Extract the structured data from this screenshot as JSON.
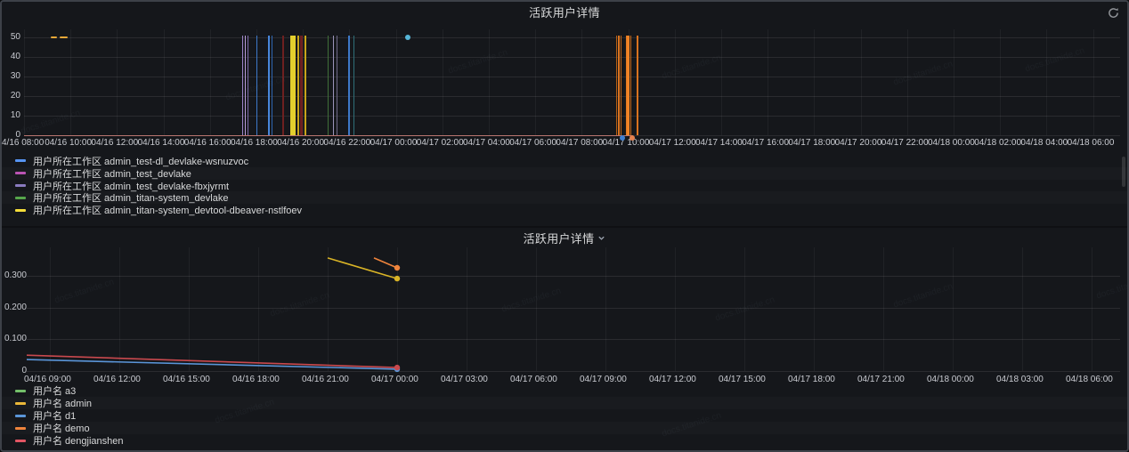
{
  "watermark": {
    "text": "docs.titanide.cn"
  },
  "panel1": {
    "title": "活跃用户详情",
    "refresh_icon": "refresh-icon",
    "legend": [
      {
        "color": "#5794f2",
        "label": "用户所在工作区 admin_test-dl_devlake-wsnuzvoc"
      },
      {
        "color": "#ba54b3",
        "label": "用户所在工作区 admin_test_devlake"
      },
      {
        "color": "#8a7bbf",
        "label": "用户所在工作区 admin_test_devlake-fbxjyrmt"
      },
      {
        "color": "#56a64b",
        "label": "用户所在工作区 admin_titan-system_devlake"
      },
      {
        "color": "#f5dd3a",
        "label": "用户所在工作区 admin_titan-system_devtool-dbeaver-nstlfoev"
      }
    ]
  },
  "panel2": {
    "title": "活跃用户详情",
    "legend": [
      {
        "color": "#73bf69",
        "label": "用户名 a3"
      },
      {
        "color": "#eab839",
        "label": "用户名 admin"
      },
      {
        "color": "#5a95d8",
        "label": "用户名 d1"
      },
      {
        "color": "#ef843c",
        "label": "用户名 demo"
      },
      {
        "color": "#e25563",
        "label": "用户名 dengjianshen"
      }
    ]
  },
  "chart_data": [
    {
      "type": "bar",
      "subtype": "time-series-event-spikes",
      "title": "活跃用户详情",
      "ylim": [
        0,
        54
      ],
      "yticks": [
        0,
        10,
        20,
        30,
        40,
        50
      ],
      "xticks": [
        "4/16 08:00",
        "04/16 10:00",
        "04/16 12:00",
        "04/16 14:00",
        "04/16 16:00",
        "04/16 18:00",
        "04/16 20:00",
        "04/16 22:00",
        "04/17 00:00",
        "04/17 02:00",
        "04/17 04:00",
        "04/17 06:00",
        "04/17 08:00",
        "04/17 10:00",
        "04/17 12:00",
        "04/17 14:00",
        "04/17 16:00",
        "04/17 18:00",
        "04/17 20:00",
        "04/17 22:00",
        "04/18 00:00",
        "04/18 02:00",
        "04/18 04:00",
        "04/18 06:00"
      ],
      "spike_value": 50,
      "spikes": [
        {
          "t": "04/16 17:24",
          "color": "#9b84c8",
          "w": 1
        },
        {
          "t": "04/16 17:31",
          "color": "#b89ad8",
          "w": 1
        },
        {
          "t": "04/16 17:38",
          "color": "#7d6aaa",
          "w": 1
        },
        {
          "t": "04/16 18:02",
          "color": "#3d79c9",
          "w": 1
        },
        {
          "t": "04/16 18:31",
          "color": "#4887dc",
          "w": 2
        },
        {
          "t": "04/16 18:40",
          "color": "#2f66b0",
          "w": 1
        },
        {
          "t": "04/16 19:09",
          "color": "#6e2020",
          "w": 2
        },
        {
          "t": "04/16 19:33",
          "color": "#e3cf2d",
          "w": 6
        },
        {
          "t": "04/16 19:48",
          "color": "#c7a51a",
          "w": 2
        },
        {
          "t": "04/16 19:57",
          "color": "#6e2020",
          "w": 3
        },
        {
          "t": "04/16 20:06",
          "color": "#c7a51a",
          "w": 2
        },
        {
          "t": "04/16 21:06",
          "color": "#416f39",
          "w": 1
        },
        {
          "t": "04/16 21:18",
          "color": "#9a93b8",
          "w": 1
        },
        {
          "t": "04/16 21:27",
          "color": "#6f6a88",
          "w": 1
        },
        {
          "t": "04/16 21:58",
          "color": "#3d79c9",
          "w": 2
        },
        {
          "t": "04/16 22:12",
          "color": "#2f6f78",
          "w": 1
        },
        {
          "t": "04/17 09:30",
          "color": "#b55f16",
          "w": 1
        },
        {
          "t": "04/17 09:36",
          "color": "#d9731f",
          "w": 2
        },
        {
          "t": "04/17 09:42",
          "color": "#c2671a",
          "w": 1
        },
        {
          "t": "04/17 09:54",
          "color": "#e07a22",
          "w": 1
        },
        {
          "t": "04/17 10:00",
          "color": "#ef8326",
          "w": 3
        },
        {
          "t": "04/17 10:06",
          "color": "#c2671a",
          "w": 1
        },
        {
          "t": "04/17 10:24",
          "color": "#d9731f",
          "w": 2
        }
      ],
      "dashes_at_50": [
        {
          "t1": "04/16 09:10",
          "t2": "04/16 09:25",
          "color": "#e8a838"
        },
        {
          "t1": "04/16 09:33",
          "t2": "04/16 09:52",
          "color": "#e8a838"
        }
      ],
      "zero_line": {
        "t1": "4/16 08:00",
        "t2": "04/17 10:12",
        "value": 0,
        "color": "#d4847c"
      },
      "dots": [
        {
          "t": "04/17 00:30",
          "v": 50,
          "color": "#56b6d8"
        },
        {
          "t": "04/17 09:45",
          "v": 0,
          "color": "#3f7fd0"
        },
        {
          "t": "04/17 10:10",
          "v": 0,
          "color": "#e5814e"
        }
      ]
    },
    {
      "type": "line",
      "title": "活跃用户详情",
      "ylim": [
        0,
        0.39
      ],
      "yticks": [
        0,
        0.1,
        0.2,
        0.3
      ],
      "ytick_labels": [
        "0",
        "0.100",
        "0.200",
        "0.300"
      ],
      "xticks": [
        "04/16 09:00",
        "04/16 12:00",
        "04/16 15:00",
        "04/16 18:00",
        "04/16 21:00",
        "04/17 00:00",
        "04/17 03:00",
        "04/17 06:00",
        "04/17 09:00",
        "04/17 12:00",
        "04/17 15:00",
        "04/17 18:00",
        "04/17 21:00",
        "04/18 00:00",
        "04/18 03:00",
        "04/18 06:00"
      ],
      "series": [
        {
          "name": "用户名 a3",
          "color": "#73bf69",
          "points": [],
          "end_dot": false
        },
        {
          "name": "用户名 admin",
          "color": "#d9b426",
          "points": [
            [
              "04/16 21:00",
              0.356
            ],
            [
              "04/17 00:00",
              0.291
            ]
          ],
          "end_dot": true
        },
        {
          "name": "用户名 d1",
          "color": "#5a95d8",
          "points": [
            [
              "04/16 08:00",
              0.036
            ],
            [
              "04/17 00:00",
              0.006
            ]
          ],
          "end_dot": true
        },
        {
          "name": "用户名 demo",
          "color": "#ef843c",
          "points": [
            [
              "04/16 23:00",
              0.356
            ],
            [
              "04/17 00:00",
              0.325
            ]
          ],
          "end_dot": true
        },
        {
          "name": "用户名 dengjianshen",
          "color": "#c9494e",
          "points": [
            [
              "04/16 08:00",
              0.05
            ],
            [
              "04/17 00:00",
              0.011
            ]
          ],
          "end_dot": true
        }
      ]
    }
  ]
}
